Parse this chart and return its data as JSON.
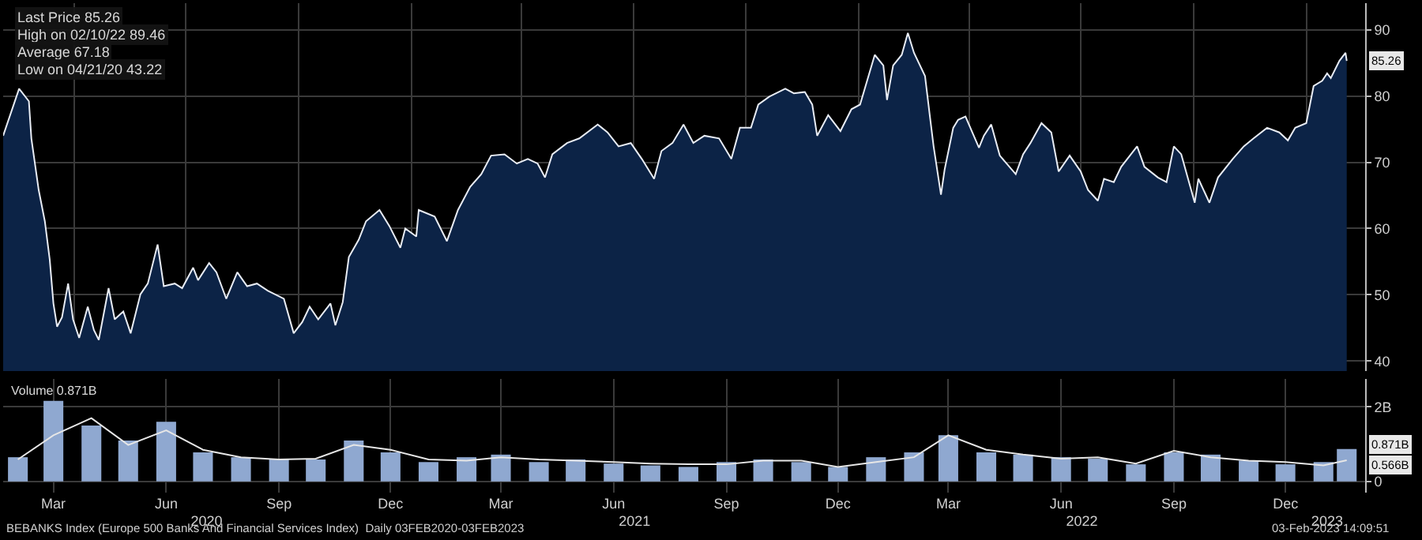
{
  "chart_data": [
    {
      "type": "area",
      "tick_labels": "y",
      "grid": true,
      "x": [
        "2020-02-03",
        "2020-02-16",
        "2020-02-24",
        "2020-02-26",
        "2020-03-03",
        "2020-03-08",
        "2020-03-12",
        "2020-03-15",
        "2020-03-18",
        "2020-03-22",
        "2020-03-27",
        "2020-03-31",
        "2020-04-05",
        "2020-04-12",
        "2020-04-17",
        "2020-04-21",
        "2020-04-29",
        "2020-05-04",
        "2020-05-11",
        "2020-05-17",
        "2020-05-25",
        "2020-05-31",
        "2020-06-08",
        "2020-06-13",
        "2020-06-22",
        "2020-06-28",
        "2020-07-07",
        "2020-07-11",
        "2020-07-20",
        "2020-07-26",
        "2020-08-03",
        "2020-08-12",
        "2020-08-20",
        "2020-08-28",
        "2020-09-06",
        "2020-09-19",
        "2020-09-27",
        "2020-10-04",
        "2020-10-10",
        "2020-10-17",
        "2020-10-27",
        "2020-10-31",
        "2020-11-06",
        "2020-11-11",
        "2020-11-19",
        "2020-11-25",
        "2020-12-06",
        "2020-12-14",
        "2020-12-23",
        "2020-12-27",
        "2021-01-05",
        "2021-01-07",
        "2021-01-20",
        "2021-01-30",
        "2021-02-08",
        "2021-02-18",
        "2021-02-27",
        "2021-03-07",
        "2021-03-18",
        "2021-03-28",
        "2021-04-06",
        "2021-04-14",
        "2021-04-20",
        "2021-04-26",
        "2021-05-08",
        "2021-05-18",
        "2021-06-02",
        "2021-06-10",
        "2021-06-19",
        "2021-06-29",
        "2021-07-08",
        "2021-07-18",
        "2021-07-24",
        "2021-08-02",
        "2021-08-11",
        "2021-08-19",
        "2021-08-28",
        "2021-09-09",
        "2021-09-19",
        "2021-09-26",
        "2021-10-05",
        "2021-10-11",
        "2021-10-20",
        "2021-11-02",
        "2021-11-09",
        "2021-11-18",
        "2021-11-24",
        "2021-11-28",
        "2021-12-07",
        "2021-12-17",
        "2021-12-26",
        "2022-01-02",
        "2022-01-14",
        "2022-01-21",
        "2022-01-24",
        "2022-01-29",
        "2022-02-05",
        "2022-02-10",
        "2022-02-15",
        "2022-02-24",
        "2022-02-28",
        "2022-03-03",
        "2022-03-09",
        "2022-03-12",
        "2022-03-19",
        "2022-03-23",
        "2022-03-29",
        "2022-04-09",
        "2022-04-13",
        "2022-04-19",
        "2022-04-26",
        "2022-05-09",
        "2022-05-15",
        "2022-05-21",
        "2022-05-30",
        "2022-06-07",
        "2022-06-13",
        "2022-06-22",
        "2022-07-01",
        "2022-07-07",
        "2022-07-15",
        "2022-07-20",
        "2022-07-28",
        "2022-08-03",
        "2022-08-16",
        "2022-08-22",
        "2022-09-02",
        "2022-09-09",
        "2022-09-15",
        "2022-09-21",
        "2022-10-02",
        "2022-10-05",
        "2022-10-14",
        "2022-10-21",
        "2022-11-02",
        "2022-11-11",
        "2022-11-19",
        "2022-11-30",
        "2022-12-10",
        "2022-12-17",
        "2022-12-23",
        "2023-01-01",
        "2023-01-07",
        "2023-01-14",
        "2023-01-18",
        "2023-01-21",
        "2023-01-28",
        "2023-02-02",
        "2023-02-03"
      ],
      "series": [
        {
          "color": "#0c2346",
          "values": [
            74.0,
            81.1,
            79.2,
            73.6,
            65.8,
            61.1,
            55.3,
            48.7,
            45.2,
            46.6,
            51.7,
            46.3,
            43.5,
            48.2,
            44.7,
            43.2,
            51.0,
            46.3,
            47.5,
            44.2,
            50.1,
            51.7,
            57.6,
            51.3,
            51.7,
            51.0,
            54.1,
            52.2,
            54.8,
            53.4,
            49.4,
            53.4,
            51.3,
            51.7,
            50.6,
            49.4,
            44.2,
            45.9,
            48.2,
            46.3,
            48.7,
            45.4,
            48.9,
            55.7,
            58.3,
            61.1,
            62.8,
            60.4,
            57.1,
            60.0,
            58.8,
            62.8,
            61.8,
            58.1,
            62.8,
            66.3,
            68.2,
            71.0,
            71.2,
            69.8,
            70.5,
            69.8,
            67.7,
            71.2,
            72.9,
            73.6,
            75.7,
            74.5,
            72.4,
            72.9,
            70.5,
            67.5,
            71.7,
            72.9,
            75.7,
            72.9,
            74.0,
            73.6,
            70.5,
            75.2,
            75.2,
            78.7,
            79.9,
            81.1,
            80.4,
            80.6,
            78.7,
            74.0,
            77.1,
            74.7,
            78.0,
            78.7,
            86.2,
            84.6,
            79.4,
            84.6,
            86.2,
            89.5,
            86.5,
            83.0,
            76.9,
            72.4,
            65.1,
            68.9,
            75.2,
            76.4,
            76.9,
            72.2,
            74.0,
            75.7,
            71.0,
            68.2,
            71.2,
            72.9,
            75.9,
            74.5,
            68.6,
            71.0,
            68.6,
            65.8,
            64.2,
            67.5,
            67.0,
            69.3,
            72.4,
            69.3,
            67.7,
            67.0,
            72.4,
            71.2,
            63.9,
            67.5,
            63.9,
            67.7,
            70.5,
            72.4,
            73.6,
            75.2,
            74.5,
            73.3,
            75.2,
            75.9,
            81.5,
            82.3,
            83.4,
            82.7,
            85.3,
            86.5,
            85.3
          ]
        }
      ],
      "xlim": [
        "2020-02-03",
        "2023-02-18"
      ],
      "xticks": [
        {
          "value": "2020-04-01",
          "label": null
        },
        {
          "value": "2020-07-01",
          "label": null
        },
        {
          "value": "2020-10-01",
          "label": null
        },
        {
          "value": "2021-01-01",
          "label": null
        },
        {
          "value": "2021-04-01",
          "label": null
        },
        {
          "value": "2021-07-01",
          "label": null
        },
        {
          "value": "2021-10-01",
          "label": null
        },
        {
          "value": "2022-01-01",
          "label": null
        },
        {
          "value": "2022-04-01",
          "label": null
        },
        {
          "value": "2022-07-01",
          "label": null
        },
        {
          "value": "2022-10-01",
          "label": null
        },
        {
          "value": "2023-01-01",
          "label": null
        }
      ],
      "ylim": [
        38.5,
        94
      ],
      "yticks": [
        40,
        50,
        60,
        70,
        80,
        90
      ],
      "annotations": [
        "Last Price 85.26",
        "High on 02/10/22 89.46",
        "Average 67.18",
        "Low on 04/21/20 43.22",
        {
          "text": "85.26",
          "x": "2023-02-03",
          "y": 85.26
        }
      ]
    },
    {
      "type": "bar",
      "grid": true,
      "x": [
        "2020-02-15",
        "2020-03-15",
        "2020-04-15",
        "2020-05-15",
        "2020-06-15",
        "2020-07-15",
        "2020-08-15",
        "2020-09-15",
        "2020-10-15",
        "2020-11-15",
        "2020-12-15",
        "2021-01-15",
        "2021-02-15",
        "2021-03-15",
        "2021-04-15",
        "2021-05-15",
        "2021-06-15",
        "2021-07-15",
        "2021-08-15",
        "2021-09-15",
        "2021-10-15",
        "2021-11-15",
        "2021-12-15",
        "2022-01-15",
        "2022-02-15",
        "2022-03-15",
        "2022-04-15",
        "2022-05-15",
        "2022-06-15",
        "2022-07-15",
        "2022-08-15",
        "2022-09-15",
        "2022-10-15",
        "2022-11-15",
        "2022-12-15",
        "2023-01-15",
        "2023-02-03"
      ],
      "series": [
        {
          "type": "bar",
          "color": "#8fa8d0",
          "values": [
            0.65,
            2.16,
            1.5,
            1.1,
            1.6,
            0.78,
            0.65,
            0.59,
            0.59,
            1.1,
            0.78,
            0.52,
            0.65,
            0.72,
            0.52,
            0.59,
            0.48,
            0.43,
            0.39,
            0.52,
            0.59,
            0.52,
            0.39,
            0.65,
            0.78,
            1.24,
            0.78,
            0.72,
            0.65,
            0.61,
            0.46,
            0.78,
            0.72,
            0.56,
            0.46,
            0.52,
            0.87
          ]
        },
        {
          "type": "line",
          "color": "#e6e6e6",
          "values": [
            0.59,
            1.24,
            1.7,
            0.98,
            1.37,
            0.85,
            0.65,
            0.59,
            0.61,
            0.98,
            0.85,
            0.59,
            0.56,
            0.65,
            0.59,
            0.56,
            0.52,
            0.48,
            0.46,
            0.46,
            0.56,
            0.56,
            0.39,
            0.52,
            0.65,
            1.24,
            0.85,
            0.72,
            0.61,
            0.65,
            0.48,
            0.82,
            0.65,
            0.56,
            0.52,
            0.43,
            0.57
          ]
        }
      ],
      "xlim": [
        "2020-02-03",
        "2023-02-18"
      ],
      "xticks": [
        {
          "value": "2020-03-15",
          "label": "Mar"
        },
        {
          "value": "2020-06-15",
          "label": "Jun"
        },
        {
          "value": "2020-09-15",
          "label": "Sep"
        },
        {
          "value": "2020-12-15",
          "label": "Dec"
        },
        {
          "value": "2021-03-15",
          "label": "Mar"
        },
        {
          "value": "2021-06-15",
          "label": "Jun"
        },
        {
          "value": "2021-09-15",
          "label": "Sep"
        },
        {
          "value": "2021-12-15",
          "label": "Dec"
        },
        {
          "value": "2022-03-15",
          "label": "Mar"
        },
        {
          "value": "2022-06-15",
          "label": "Jun"
        },
        {
          "value": "2022-09-15",
          "label": "Sep"
        },
        {
          "value": "2022-12-15",
          "label": "Dec"
        }
      ],
      "x2lim": [
        "2020-02-03",
        "2023-02-18"
      ],
      "x2ticks": [
        {
          "value": "2020-07-18",
          "label": "2020"
        },
        {
          "value": "2021-07-02",
          "label": "2021"
        },
        {
          "value": "2022-07-02",
          "label": "2022"
        },
        {
          "value": "2023-01-18",
          "label": "2023"
        }
      ],
      "ylim": [
        -0.3,
        2.75
      ],
      "yticks": [
        0,
        {
          "value": 2,
          "label": "2B"
        }
      ],
      "annotations": [
        "Volume 0.871B",
        {
          "text": "0.871B",
          "x": "2023-02-03",
          "y": 0.871
        },
        {
          "text": "0.566B",
          "x": "2023-02-03",
          "y": 0.566
        },
        "BEBANKS Index (Europe 500 Banks And Financial Services Index)  Daily 03FEB2020-03FEB2023",
        "03-Feb-2023 14:09:51"
      ]
    }
  ]
}
